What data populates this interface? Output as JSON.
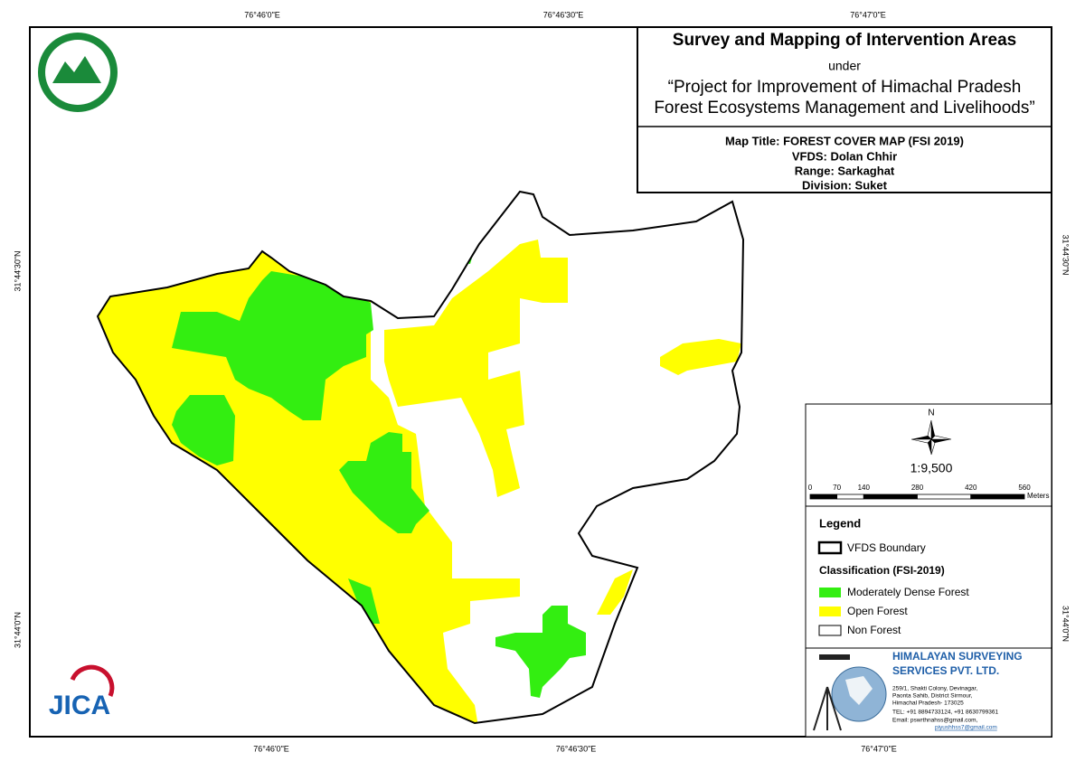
{
  "grid_labels": {
    "top": [
      "76°46'0\"E",
      "76°46'30\"E",
      "76°47'0\"E"
    ],
    "bottom": [
      "76°46'0\"E",
      "76°46'30\"E",
      "76°47'0\"E"
    ],
    "left": [
      "31°44'30\"N",
      "31°44'0\"N"
    ],
    "right": [
      "31°44'30\"N",
      "31°44'0\"N"
    ]
  },
  "header": {
    "title": "Survey and Mapping of Intervention Areas",
    "under": "under",
    "project_lines": [
      "“Project for Improvement of Himachal Pradesh",
      "Forest Ecosystems Management and Livelihoods”"
    ]
  },
  "details": [
    "Map Title: FOREST COVER MAP (FSI 2019)",
    "VFDS: Dolan Chhir",
    "Range: Sarkaghat",
    "Division: Suket"
  ],
  "north": "N",
  "scale": {
    "ratio": "1:9,500",
    "ticks": [
      0,
      70,
      140,
      280,
      420,
      560
    ],
    "unit": "Meters"
  },
  "legend": {
    "title": "Legend",
    "boundary": "VFDS Boundary",
    "classification": "Classification (FSI-2019)",
    "items": [
      "Moderately Dense Forest",
      "Open Forest",
      "Non Forest"
    ]
  },
  "company": {
    "name_lines": [
      "HIMALAYAN SURVEYING",
      "SERVICES PVT. LTD."
    ],
    "address": [
      "259/1, Shakti Colony, Devinagar,",
      "Paonta Sahib, District Sirmour,",
      "Himachal Pradesh- 173025",
      "TEL: +91 8894733124, +91 8630799361",
      "Email: pswrthnahss@gmail.com,",
      "piyushhss7@gmail.com"
    ]
  },
  "logo_text": "JICA"
}
